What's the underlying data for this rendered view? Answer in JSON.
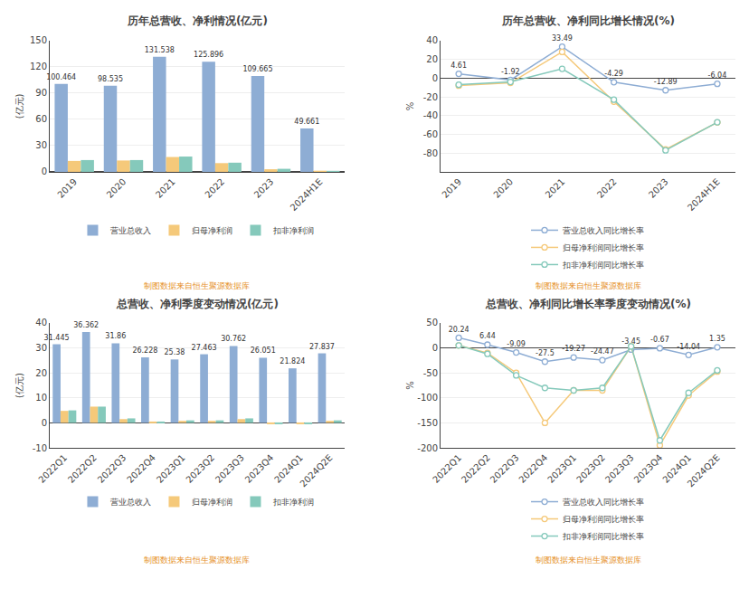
{
  "chart_data": [
    {
      "type": "bar",
      "title": "历年总营收、净利情况(亿元)",
      "ylabel": "(亿元)",
      "categories": [
        "2019",
        "2020",
        "2021",
        "2022",
        "2023",
        "2024H1E"
      ],
      "series": [
        {
          "name": "营业总收入",
          "color": "#8eadd4",
          "values": [
            100.464,
            98.535,
            131.538,
            125.896,
            109.665,
            49.661
          ],
          "data_labels": true
        },
        {
          "name": "归母净利润",
          "color": "#f5c97a",
          "values": [
            12.5,
            13.0,
            17.0,
            10.0,
            3.0,
            1.36
          ]
        },
        {
          "name": "扣非净利润",
          "color": "#85c9bb",
          "values": [
            13.5,
            13.5,
            17.5,
            10.5,
            3.5,
            1.2
          ]
        }
      ],
      "ylim": [
        0,
        150
      ],
      "yticks": [
        0,
        30,
        60,
        90,
        120,
        150
      ],
      "grid": true,
      "legend": "bottom",
      "annotations": [
        {
          "text": "制图数据来自恒生聚源数据库",
          "color": "#e6922a"
        }
      ]
    },
    {
      "type": "line",
      "title": "历年总营收、净利同比增长情况(%)",
      "ylabel": "%",
      "categories": [
        "2019",
        "2020",
        "2021",
        "2022",
        "2023",
        "2024H1E"
      ],
      "series": [
        {
          "name": "营业总收入同比增长率",
          "color": "#8eadd4",
          "marker": "circle",
          "line_style": "solid",
          "values": [
            4.61,
            -1.92,
            33.49,
            -4.29,
            -12.89,
            -6.04
          ],
          "data_labels": true
        },
        {
          "name": "归母净利润同比增长率",
          "color": "#f5c97a",
          "marker": "circle",
          "line_style": "solid",
          "values": [
            -8.0,
            -5.0,
            28.0,
            -25.0,
            -76.0,
            -47.24
          ]
        },
        {
          "name": "扣非净利润同比增长率",
          "color": "#85c9bb",
          "marker": "circle",
          "line_style": "solid",
          "values": [
            -7.0,
            -4.0,
            10.0,
            -23.0,
            -77.0,
            -47.0
          ]
        }
      ],
      "ylim": [
        -100,
        40
      ],
      "yticks": [
        -80,
        -60,
        -40,
        -20,
        0,
        20,
        40
      ],
      "grid": true,
      "legend": "bottom",
      "annotations": [
        {
          "text": "制图数据来自恒生聚源数据库",
          "color": "#e6922a"
        }
      ]
    },
    {
      "type": "bar",
      "title": "总营收、净利季度变动情况(亿元)",
      "ylabel": "(亿元)",
      "categories": [
        "2022Q1",
        "2022Q2",
        "2022Q3",
        "2022Q4",
        "2023Q1",
        "2023Q2",
        "2023Q3",
        "2023Q4",
        "2024Q1",
        "2024Q2E"
      ],
      "series": [
        {
          "name": "营业总收入",
          "color": "#8eadd4",
          "values": [
            31.445,
            36.362,
            31.86,
            26.228,
            25.38,
            27.463,
            30.762,
            26.051,
            21.824,
            27.837
          ],
          "data_labels": true
        },
        {
          "name": "归母净利润",
          "color": "#f5c97a",
          "values": [
            4.8,
            6.5,
            1.5,
            0.3,
            0.8,
            0.8,
            1.5,
            -0.3,
            -0.3,
            0.8
          ]
        },
        {
          "name": "扣非净利润",
          "color": "#85c9bb",
          "values": [
            5.0,
            6.5,
            1.8,
            0.3,
            1.0,
            1.0,
            1.8,
            -0.2,
            -0.2,
            1.0
          ]
        }
      ],
      "ylim": [
        -10,
        40
      ],
      "yticks": [
        -10,
        0,
        10,
        20,
        30,
        40
      ],
      "grid": true,
      "legend": "bottom",
      "annotations": [
        {
          "text": "制图数据来自恒生聚源数据库",
          "color": "#e6922a"
        }
      ]
    },
    {
      "type": "line",
      "title": "总营收、净利同比增长率季度变动情况(%)",
      "ylabel": "%",
      "categories": [
        "2022Q1",
        "2022Q2",
        "2022Q3",
        "2022Q4",
        "2023Q1",
        "2023Q2",
        "2023Q3",
        "2023Q4",
        "2024Q1",
        "2024Q2E"
      ],
      "series": [
        {
          "name": "营业总收入同比增长率",
          "color": "#8eadd4",
          "marker": "circle",
          "line_style": "solid",
          "values": [
            20.24,
            6.44,
            -9.09,
            -27.5,
            -19.27,
            -24.47,
            -3.45,
            -0.67,
            -14.04,
            1.35
          ],
          "data_labels": true
        },
        {
          "name": "归母净利润同比增长率",
          "color": "#f5c97a",
          "marker": "circle",
          "line_style": "solid",
          "values": [
            5.0,
            -10.0,
            -50.0,
            -150.0,
            -85.0,
            -85.0,
            3.0,
            -195.0,
            -95.0,
            -47.24
          ]
        },
        {
          "name": "扣非净利润同比增长率",
          "color": "#85c9bb",
          "marker": "circle",
          "line_style": "solid",
          "values": [
            5.0,
            -12.0,
            -55.0,
            -80.0,
            -85.0,
            -80.0,
            3.0,
            -185.0,
            -90.0,
            -45.0
          ]
        }
      ],
      "ylim": [
        -200,
        50
      ],
      "yticks": [
        -200,
        -150,
        -100,
        -50,
        0,
        50
      ],
      "grid": true,
      "legend": "bottom",
      "annotations": [
        {
          "text": "制图数据来自恒生聚源数据库",
          "color": "#e6922a"
        }
      ]
    }
  ]
}
